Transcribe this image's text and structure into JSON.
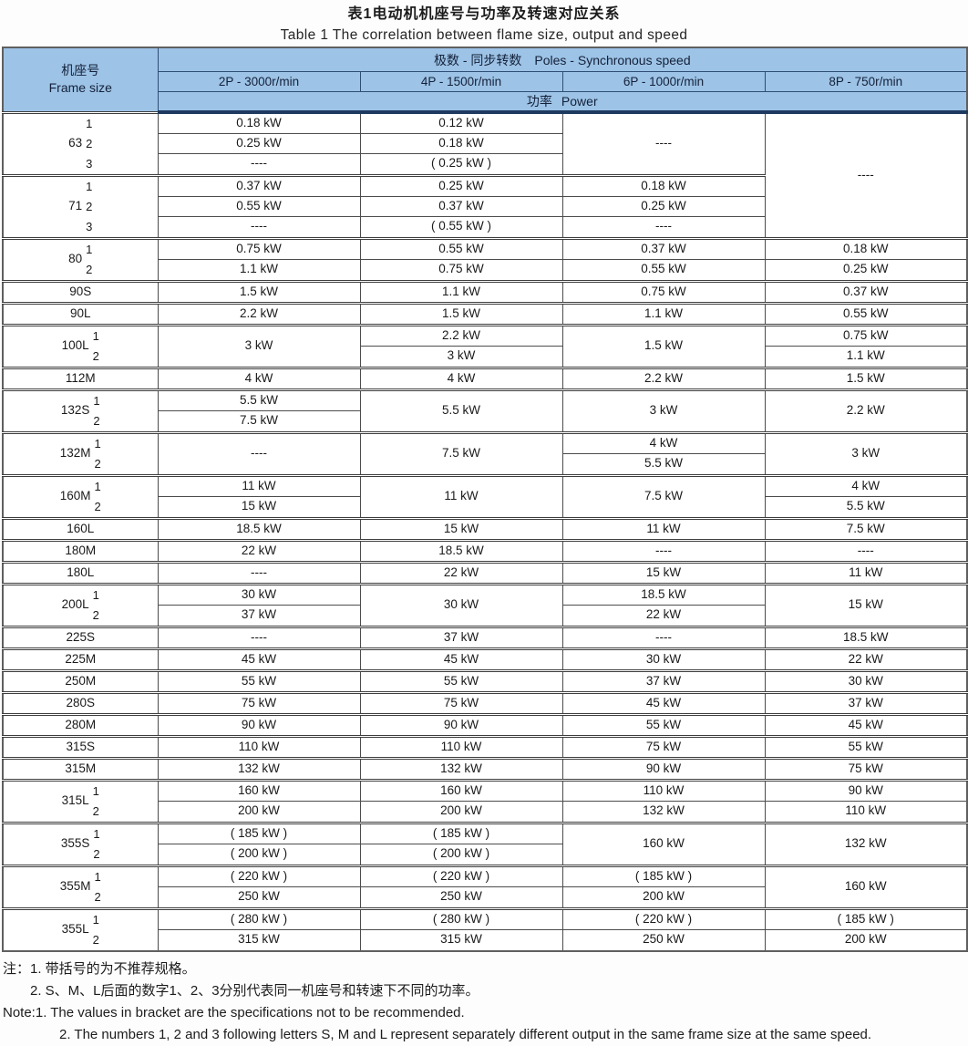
{
  "title": {
    "zh": "表1电动机机座号与功率及转速对应关系",
    "en": "Table 1  The correlation between flame size, output and speed"
  },
  "colors": {
    "header_bg": "#9dc3e6",
    "header_band": "#1e3a5f",
    "grid": "#4c4c4c"
  },
  "header": {
    "frame_zh": "机座号",
    "frame_en": "Frame size",
    "poles_zh": "极数 - 同步转数",
    "poles_en": "Poles - Synchronous speed",
    "speeds": [
      "2P - 3000r/min",
      "4P - 1500r/min",
      "6P - 1000r/min",
      "8P - 750r/min"
    ],
    "power_zh": "功率",
    "power_en": "Power"
  },
  "table": {
    "groups": [
      {
        "frame": "63",
        "subs": [
          "1",
          "2",
          "3"
        ],
        "cells": {
          "p2": [
            "0.18 kW",
            "0.25 kW",
            "----"
          ],
          "p4": [
            "0.12 kW",
            "0.18 kW",
            "( 0.25 kW )"
          ],
          "p6": [
            {
              "v": "----",
              "s": 3
            }
          ],
          "p8": [
            {
              "v": "----",
              "s": 6
            }
          ]
        }
      },
      {
        "frame": "71",
        "subs": [
          "1",
          "2",
          "3"
        ],
        "cells": {
          "p2": [
            "0.37 kW",
            "0.55 kW",
            "----"
          ],
          "p4": [
            "0.25 kW",
            "0.37 kW",
            "( 0.55 kW )"
          ],
          "p6": [
            "0.18 kW",
            "0.25 kW",
            "----"
          ],
          "p8": []
        }
      },
      {
        "frame": "80",
        "subs": [
          "1",
          "2"
        ],
        "cells": {
          "p2": [
            "0.75 kW",
            "1.1 kW"
          ],
          "p4": [
            "0.55 kW",
            "0.75 kW"
          ],
          "p6": [
            "0.37 kW",
            "0.55 kW"
          ],
          "p8": [
            "0.18 kW",
            "0.25 kW"
          ]
        }
      },
      {
        "frame": "90S",
        "cells": {
          "p2": [
            "1.5 kW"
          ],
          "p4": [
            "1.1 kW"
          ],
          "p6": [
            "0.75 kW"
          ],
          "p8": [
            "0.37 kW"
          ]
        }
      },
      {
        "frame": "90L",
        "cells": {
          "p2": [
            "2.2 kW"
          ],
          "p4": [
            "1.5 kW"
          ],
          "p6": [
            "1.1 kW"
          ],
          "p8": [
            "0.55 kW"
          ]
        }
      },
      {
        "frame": "100L",
        "subs": [
          "1",
          "2"
        ],
        "cells": {
          "p2": [
            {
              "v": "3 kW",
              "s": 2
            }
          ],
          "p4": [
            "2.2 kW",
            "3 kW"
          ],
          "p6": [
            {
              "v": "1.5 kW",
              "s": 2
            }
          ],
          "p8": [
            "0.75 kW",
            "1.1 kW"
          ]
        }
      },
      {
        "frame": "112M",
        "cells": {
          "p2": [
            "4 kW"
          ],
          "p4": [
            "4 kW"
          ],
          "p6": [
            "2.2 kW"
          ],
          "p8": [
            "1.5 kW"
          ]
        }
      },
      {
        "frame": "132S",
        "subs": [
          "1",
          "2"
        ],
        "cells": {
          "p2": [
            "5.5 kW",
            "7.5 kW"
          ],
          "p4": [
            {
              "v": "5.5 kW",
              "s": 2
            }
          ],
          "p6": [
            {
              "v": "3 kW",
              "s": 2
            }
          ],
          "p8": [
            {
              "v": "2.2 kW",
              "s": 2
            }
          ]
        }
      },
      {
        "frame": "132M",
        "subs": [
          "1",
          "2"
        ],
        "cells": {
          "p2": [
            {
              "v": "----",
              "s": 2
            }
          ],
          "p4": [
            {
              "v": "7.5 kW",
              "s": 2
            }
          ],
          "p6": [
            "4 kW",
            "5.5 kW"
          ],
          "p8": [
            {
              "v": "3 kW",
              "s": 2
            }
          ]
        }
      },
      {
        "frame": "160M",
        "subs": [
          "1",
          "2"
        ],
        "cells": {
          "p2": [
            "11 kW",
            "15 kW"
          ],
          "p4": [
            {
              "v": "11 kW",
              "s": 2
            }
          ],
          "p6": [
            {
              "v": "7.5 kW",
              "s": 2
            }
          ],
          "p8": [
            "4 kW",
            "5.5 kW"
          ]
        }
      },
      {
        "frame": "160L",
        "cells": {
          "p2": [
            "18.5 kW"
          ],
          "p4": [
            "15 kW"
          ],
          "p6": [
            "11 kW"
          ],
          "p8": [
            "7.5 kW"
          ]
        }
      },
      {
        "frame": "180M",
        "cells": {
          "p2": [
            "22 kW"
          ],
          "p4": [
            "18.5 kW"
          ],
          "p6": [
            "----"
          ],
          "p8": [
            "----"
          ]
        }
      },
      {
        "frame": "180L",
        "cells": {
          "p2": [
            "----"
          ],
          "p4": [
            "22 kW"
          ],
          "p6": [
            "15 kW"
          ],
          "p8": [
            "11 kW"
          ]
        }
      },
      {
        "frame": "200L",
        "subs": [
          "1",
          "2"
        ],
        "cells": {
          "p2": [
            "30 kW",
            "37 kW"
          ],
          "p4": [
            {
              "v": "30 kW",
              "s": 2
            }
          ],
          "p6": [
            "18.5 kW",
            "22 kW"
          ],
          "p8": [
            {
              "v": "15 kW",
              "s": 2
            }
          ]
        }
      },
      {
        "frame": "225S",
        "cells": {
          "p2": [
            "----"
          ],
          "p4": [
            "37 kW"
          ],
          "p6": [
            "----"
          ],
          "p8": [
            "18.5 kW"
          ]
        }
      },
      {
        "frame": "225M",
        "cells": {
          "p2": [
            "45 kW"
          ],
          "p4": [
            "45 kW"
          ],
          "p6": [
            "30 kW"
          ],
          "p8": [
            "22 kW"
          ]
        }
      },
      {
        "frame": "250M",
        "cells": {
          "p2": [
            "55 kW"
          ],
          "p4": [
            "55 kW"
          ],
          "p6": [
            "37 kW"
          ],
          "p8": [
            "30 kW"
          ]
        }
      },
      {
        "frame": "280S",
        "cells": {
          "p2": [
            "75 kW"
          ],
          "p4": [
            "75 kW"
          ],
          "p6": [
            "45 kW"
          ],
          "p8": [
            "37 kW"
          ]
        }
      },
      {
        "frame": "280M",
        "cells": {
          "p2": [
            "90 kW"
          ],
          "p4": [
            "90 kW"
          ],
          "p6": [
            "55 kW"
          ],
          "p8": [
            "45 kW"
          ]
        }
      },
      {
        "frame": "315S",
        "cells": {
          "p2": [
            "110 kW"
          ],
          "p4": [
            "110 kW"
          ],
          "p6": [
            "75 kW"
          ],
          "p8": [
            "55 kW"
          ]
        }
      },
      {
        "frame": "315M",
        "cells": {
          "p2": [
            "132 kW"
          ],
          "p4": [
            "132 kW"
          ],
          "p6": [
            "90 kW"
          ],
          "p8": [
            "75 kW"
          ]
        }
      },
      {
        "frame": "315L",
        "subs": [
          "1",
          "2"
        ],
        "cells": {
          "p2": [
            "160 kW",
            "200 kW"
          ],
          "p4": [
            "160 kW",
            "200 kW"
          ],
          "p6": [
            "110 kW",
            "132 kW"
          ],
          "p8": [
            "90 kW",
            "110 kW"
          ]
        }
      },
      {
        "frame": "355S",
        "subs": [
          "1",
          "2"
        ],
        "cells": {
          "p2": [
            "( 185 kW )",
            "( 200 kW )"
          ],
          "p4": [
            "( 185 kW )",
            "( 200 kW )"
          ],
          "p6": [
            {
              "v": "160 kW",
              "s": 2
            }
          ],
          "p8": [
            {
              "v": "132 kW",
              "s": 2
            }
          ]
        }
      },
      {
        "frame": "355M",
        "subs": [
          "1",
          "2"
        ],
        "cells": {
          "p2": [
            "( 220 kW )",
            "250 kW"
          ],
          "p4": [
            "( 220 kW )",
            "250 kW"
          ],
          "p6": [
            "( 185 kW )",
            "200 kW"
          ],
          "p8": [
            {
              "v": "160 kW",
              "s": 2
            }
          ]
        }
      },
      {
        "frame": "355L",
        "subs": [
          "1",
          "2"
        ],
        "cells": {
          "p2": [
            "( 280 kW )",
            "315 kW"
          ],
          "p4": [
            "( 280 kW )",
            "315 kW"
          ],
          "p6": [
            "( 220 kW )",
            "250 kW"
          ],
          "p8": [
            "( 185 kW )",
            "200 kW"
          ]
        }
      }
    ]
  },
  "notes": {
    "zh1": "注：1. 带括号的为不推荐规格。",
    "zh2": "2. S、M、L后面的数字1、2、3分别代表同一机座号和转速下不同的功率。",
    "en1": "Note:1. The values in bracket are the specifications not to be recommended.",
    "en2": "2. The numbers 1, 2 and 3 following letters S, M and L represent separately different output in the same frame size at the same speed."
  }
}
